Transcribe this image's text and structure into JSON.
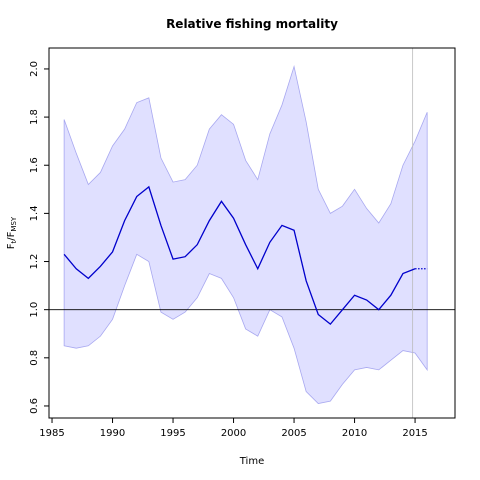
{
  "chart_data": {
    "type": "line",
    "title": "Relative fishing mortality",
    "xlabel": "Time",
    "ylabel": [
      "F",
      "t",
      "/F",
      "MSY"
    ],
    "x": [
      1986,
      1987,
      1988,
      1989,
      1990,
      1991,
      1992,
      1993,
      1994,
      1995,
      1996,
      1997,
      1998,
      1999,
      2000,
      2001,
      2002,
      2003,
      2004,
      2005,
      2006,
      2007,
      2008,
      2009,
      2010,
      2011,
      2012,
      2013,
      2014,
      2015,
      2016
    ],
    "values": [
      1.23,
      1.17,
      1.13,
      1.18,
      1.24,
      1.37,
      1.47,
      1.51,
      1.35,
      1.21,
      1.22,
      1.27,
      1.37,
      1.45,
      1.38,
      1.27,
      1.17,
      1.28,
      1.35,
      1.33,
      1.12,
      0.98,
      0.94,
      1.0,
      1.06,
      1.04,
      1.0,
      1.06,
      1.15,
      1.17,
      1.17
    ],
    "upper": [
      1.79,
      1.65,
      1.52,
      1.57,
      1.68,
      1.75,
      1.86,
      1.88,
      1.63,
      1.53,
      1.54,
      1.6,
      1.75,
      1.81,
      1.77,
      1.62,
      1.54,
      1.73,
      1.85,
      2.01,
      1.78,
      1.5,
      1.4,
      1.43,
      1.5,
      1.42,
      1.36,
      1.44,
      1.6,
      1.7,
      1.82
    ],
    "lower": [
      0.85,
      0.84,
      0.85,
      0.89,
      0.96,
      1.1,
      1.23,
      1.2,
      0.99,
      0.96,
      0.99,
      1.05,
      1.15,
      1.13,
      1.05,
      0.92,
      0.89,
      1.0,
      0.97,
      0.84,
      0.66,
      0.61,
      0.62,
      0.69,
      0.75,
      0.76,
      0.75,
      0.79,
      0.83,
      0.82,
      0.75
    ],
    "color": "#0000cc",
    "band_color": "#e0e0ff",
    "band_edge": "#a8a8f0",
    "projection_start": 2015,
    "hline": 1,
    "vline": 2014.8,
    "xlim": [
      1984.75,
      2018.3
    ],
    "ylim": [
      0.55,
      2.087
    ],
    "xticks": [
      1985,
      1990,
      1995,
      2000,
      2005,
      2010,
      2015
    ],
    "yticks": [
      0.6,
      0.8,
      {
        "value": 1,
        "label": "1.0"
      },
      1.2,
      1.4,
      1.6,
      1.8,
      {
        "value": 2,
        "label": "2.0"
      }
    ]
  }
}
